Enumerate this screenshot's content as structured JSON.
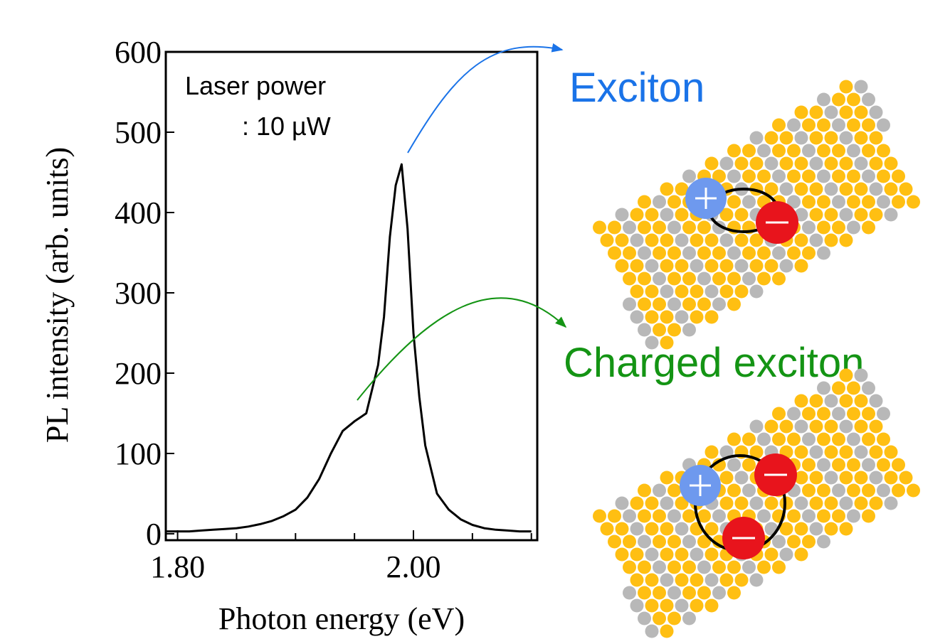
{
  "chart_data": {
    "type": "line",
    "xlabel": "Photon energy (eV)",
    "ylabel": "PL intensity (arb. units)",
    "x": [
      1.79,
      1.8,
      1.81,
      1.82,
      1.83,
      1.84,
      1.85,
      1.86,
      1.87,
      1.88,
      1.89,
      1.9,
      1.91,
      1.92,
      1.93,
      1.94,
      1.95,
      1.96,
      1.97,
      1.975,
      1.98,
      1.985,
      1.99,
      1.995,
      2.0,
      2.005,
      2.01,
      2.02,
      2.03,
      2.04,
      2.05,
      2.06,
      2.07,
      2.08,
      2.09,
      2.1
    ],
    "values": [
      3,
      3,
      3,
      4,
      5,
      6,
      7,
      9,
      12,
      16,
      22,
      30,
      45,
      68,
      100,
      128,
      140,
      150,
      210,
      270,
      370,
      434,
      460,
      380,
      250,
      170,
      110,
      50,
      30,
      18,
      11,
      7,
      5,
      4,
      3,
      3
    ],
    "color": "#000000",
    "xlim": [
      1.79,
      2.105
    ],
    "ylim": [
      -8,
      600
    ],
    "xticks": [
      {
        "value": 1.8,
        "label": "1.80"
      },
      {
        "value": 2.0,
        "label": "2.00"
      }
    ],
    "xminorticks": [
      1.85,
      1.9,
      1.95,
      2.05,
      2.1
    ],
    "yticks": [
      0,
      100,
      200,
      300,
      400,
      500,
      600
    ],
    "annotations": [
      "Laser power",
      ": 10 µW",
      "Exciton",
      "Charged exciton"
    ]
  }
}
